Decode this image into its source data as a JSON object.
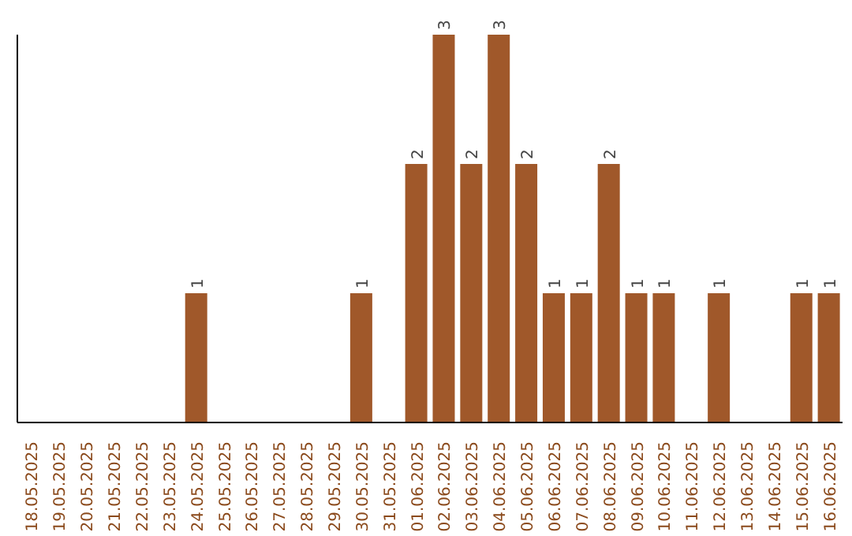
{
  "chart_data": {
    "type": "bar",
    "categories": [
      "18.05.2025",
      "19.05.2025",
      "20.05.2025",
      "21.05.2025",
      "22.05.2025",
      "23.05.2025",
      "24.05.2025",
      "25.05.2025",
      "26.05.2025",
      "27.05.2025",
      "28.05.2025",
      "29.05.2025",
      "30.05.2025",
      "31.05.2025",
      "01.06.2025",
      "02.06.2025",
      "03.06.2025",
      "04.06.2025",
      "05.06.2025",
      "06.06.2025",
      "07.06.2025",
      "08.06.2025",
      "09.06.2025",
      "10.06.2025",
      "11.06.2025",
      "12.06.2025",
      "13.06.2025",
      "14.06.2025",
      "15.06.2025",
      "16.06.2025"
    ],
    "values": [
      0,
      0,
      0,
      0,
      0,
      0,
      1,
      0,
      0,
      0,
      0,
      0,
      1,
      0,
      2,
      3,
      2,
      3,
      2,
      1,
      1,
      2,
      1,
      1,
      0,
      1,
      0,
      0,
      1,
      1
    ],
    "value_labels": [
      null,
      null,
      null,
      null,
      null,
      null,
      "1",
      null,
      null,
      null,
      null,
      null,
      "1",
      null,
      "2",
      "3",
      "2",
      "3",
      "2",
      "1",
      "1",
      "2",
      "1",
      "1",
      null,
      "1",
      null,
      null,
      "1",
      "1"
    ],
    "color": "#a0582a",
    "grid": false
  }
}
